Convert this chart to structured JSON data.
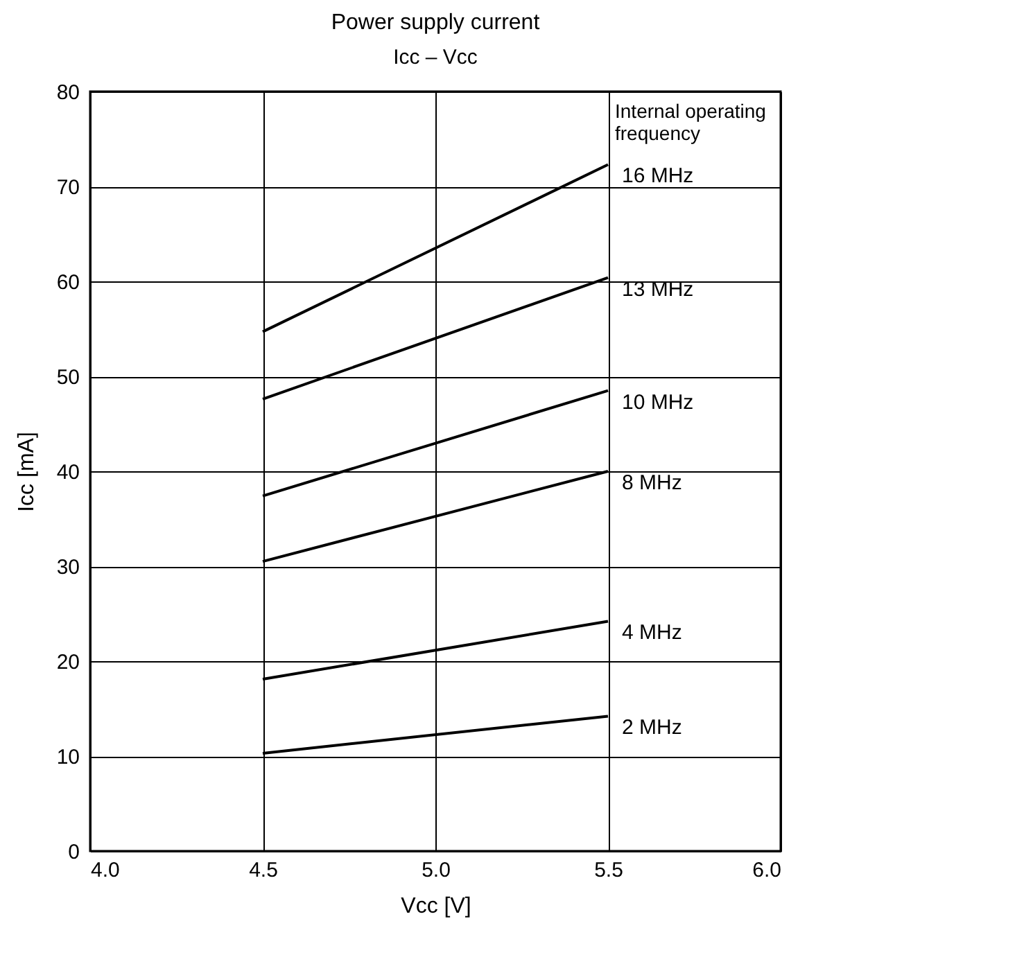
{
  "chart_data": {
    "type": "line",
    "title": "Power supply current",
    "subtitle": "Icc – Vcc",
    "xlabel": "Vcc [V]",
    "ylabel": "Icc [mA]",
    "x": [
      4.5,
      5.5
    ],
    "series": [
      {
        "name": "16 MHz",
        "color": "#000000",
        "values": [
          54.7,
          72.3
        ]
      },
      {
        "name": "13 MHz",
        "color": "#000000",
        "values": [
          47.6,
          60.4
        ]
      },
      {
        "name": "10 MHz",
        "color": "#000000",
        "values": [
          37.4,
          48.5
        ]
      },
      {
        "name": "8 MHz",
        "color": "#000000",
        "values": [
          30.5,
          40.0
        ]
      },
      {
        "name": "4 MHz",
        "color": "#000000",
        "values": [
          18.1,
          24.2
        ]
      },
      {
        "name": "2 MHz",
        "color": "#000000",
        "values": [
          10.3,
          14.2
        ]
      }
    ],
    "annotations": [
      "Internal operating frequency"
    ],
    "xlim": [
      4.0,
      6.0
    ],
    "xticks": [
      {
        "value": 4.0,
        "label": "4.0"
      },
      4.5,
      {
        "value": 5.0,
        "label": "5.0"
      },
      5.5,
      {
        "value": 6.0,
        "label": "6.0"
      }
    ],
    "ylim": [
      0,
      80
    ],
    "yticks": [
      0,
      10,
      20,
      30,
      40,
      50,
      60,
      70,
      80
    ],
    "grid": true,
    "marker": "none",
    "line_style": "solid"
  }
}
